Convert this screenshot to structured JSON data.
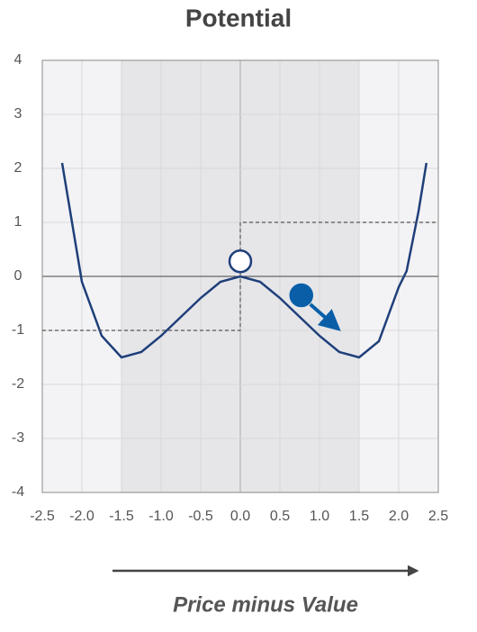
{
  "chart_data": {
    "type": "line",
    "title": "Potential",
    "xlabel": "Price minus Value",
    "series": [
      {
        "color": "#1f3f7a",
        "x": [
          -2.25,
          -2.0,
          -1.75,
          -1.5,
          -1.25,
          -1.0,
          -0.75,
          -0.5,
          -0.25,
          0,
          0.25,
          0.5,
          0.75,
          1.0,
          1.25,
          1.5,
          1.75,
          2.0,
          2.1,
          2.25,
          2.35
        ],
        "values": [
          2.1,
          -0.1,
          -1.1,
          -1.5,
          -1.4,
          -1.1,
          -0.75,
          -0.4,
          -0.1,
          0,
          -0.1,
          -0.4,
          -0.75,
          -1.1,
          -1.4,
          -1.5,
          -1.2,
          -0.2,
          0.1,
          1.2,
          2.1
        ]
      },
      {
        "color": "#555555",
        "dashed": true,
        "x": [
          -2.5,
          0,
          0,
          2.5
        ],
        "values": [
          -1,
          -1,
          1,
          1
        ]
      }
    ],
    "points": [
      {
        "x": 0,
        "y": 0.28,
        "color": "#1f3f7a",
        "hollow": true
      },
      {
        "x": 0.77,
        "y": -0.35,
        "color": "#0a5ea8",
        "hollow": false
      }
    ],
    "shaded_region": [
      -1.5,
      1.5
    ],
    "xlim": [
      -2.5,
      2.5
    ],
    "ylim": [
      -4,
      4
    ],
    "xticks": [
      -2.5,
      {
        "value": -2,
        "label": "-2.0"
      },
      -1.5,
      {
        "value": -1,
        "label": "-1.0"
      },
      -0.5,
      {
        "value": 0,
        "label": "0.0"
      },
      0.5,
      {
        "value": 1,
        "label": "1.0"
      },
      1.5,
      {
        "value": 2,
        "label": "2.0"
      },
      2.5
    ],
    "yticks": [
      -4,
      -3,
      -2,
      -1,
      0,
      1,
      2,
      3,
      4
    ],
    "grid": true
  }
}
